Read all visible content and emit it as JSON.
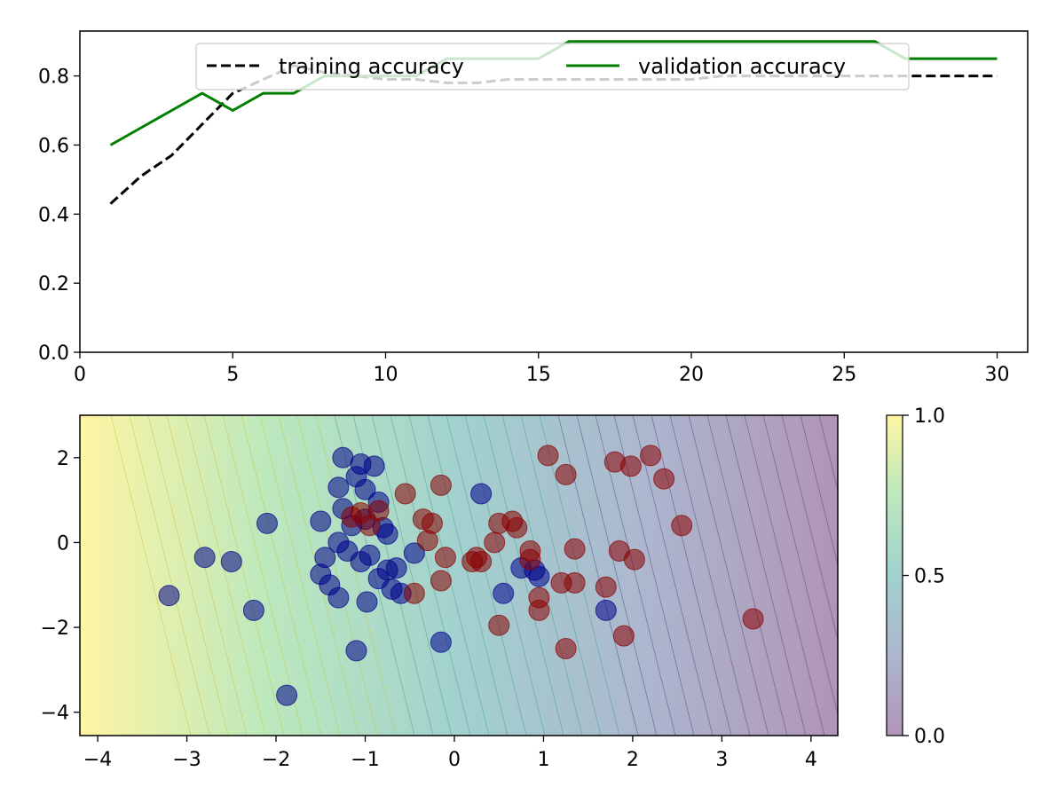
{
  "chart_data": [
    {
      "type": "line",
      "title": "",
      "xlabel": "",
      "ylabel": "",
      "xlim": [
        0,
        31
      ],
      "ylim": [
        0.0,
        0.93
      ],
      "xticks": [
        "0",
        "5",
        "10",
        "15",
        "20",
        "25",
        "30"
      ],
      "yticks": [
        "0.0",
        "0.2",
        "0.4",
        "0.6",
        "0.8"
      ],
      "legend": "upper-center",
      "grid": false,
      "x": [
        1,
        2,
        3,
        4,
        5,
        6,
        7,
        8,
        9,
        10,
        11,
        12,
        13,
        14,
        15,
        16,
        17,
        18,
        19,
        20,
        21,
        22,
        23,
        24,
        25,
        26,
        27,
        28,
        29,
        30
      ],
      "series": [
        {
          "name": "training accuracy",
          "style": "dashed",
          "color": "#000000",
          "values": [
            0.43,
            0.51,
            0.57,
            0.66,
            0.75,
            0.79,
            0.83,
            0.81,
            0.8,
            0.79,
            0.79,
            0.78,
            0.78,
            0.79,
            0.79,
            0.79,
            0.79,
            0.79,
            0.79,
            0.79,
            0.8,
            0.8,
            0.8,
            0.8,
            0.8,
            0.8,
            0.8,
            0.8,
            0.8,
            0.8
          ]
        },
        {
          "name": "validation accuracy",
          "style": "solid",
          "color": "#008000",
          "values": [
            0.6,
            0.65,
            0.7,
            0.75,
            0.7,
            0.75,
            0.75,
            0.8,
            0.8,
            0.8,
            0.8,
            0.85,
            0.85,
            0.85,
            0.85,
            0.9,
            0.9,
            0.9,
            0.9,
            0.9,
            0.9,
            0.9,
            0.9,
            0.9,
            0.9,
            0.9,
            0.85,
            0.85,
            0.85,
            0.85
          ]
        }
      ]
    },
    {
      "type": "scatter",
      "title": "",
      "xlabel": "",
      "ylabel": "",
      "xlim": [
        -4.2,
        4.3
      ],
      "ylim": [
        -4.55,
        3.0
      ],
      "xticks": [
        "−4",
        "−3",
        "−2",
        "−1",
        "0",
        "1",
        "2",
        "3",
        "4"
      ],
      "yticks": [
        "−4",
        "−2",
        "0",
        "2"
      ],
      "background": "filled contour of predicted probability (viridis colormap, alpha 0.4), decision boundary tilted",
      "colorbar": {
        "ticks": [
          "0.0",
          "0.5",
          "1.0"
        ],
        "range": [
          0.0,
          1.0
        ]
      },
      "series": [
        {
          "name": "",
          "color": "#00008b",
          "points": [
            [
              -3.2,
              -1.25
            ],
            [
              -2.8,
              -0.35
            ],
            [
              -2.5,
              -0.45
            ],
            [
              -2.25,
              -1.6
            ],
            [
              -2.1,
              0.45
            ],
            [
              -1.88,
              -3.6
            ],
            [
              -1.5,
              0.5
            ],
            [
              -1.5,
              -0.75
            ],
            [
              -1.4,
              -1.0
            ],
            [
              -1.45,
              -0.35
            ],
            [
              -1.3,
              -1.3
            ],
            [
              -1.3,
              1.3
            ],
            [
              -1.25,
              0.8
            ],
            [
              -1.25,
              2.0
            ],
            [
              -1.3,
              0.0
            ],
            [
              -1.2,
              -0.2
            ],
            [
              -1.15,
              0.4
            ],
            [
              -1.1,
              -2.55
            ],
            [
              -1.1,
              1.55
            ],
            [
              -1.05,
              1.85
            ],
            [
              -1.05,
              -0.45
            ],
            [
              -1.0,
              1.25
            ],
            [
              -1.0,
              0.55
            ],
            [
              -0.98,
              -1.4
            ],
            [
              -0.95,
              -0.3
            ],
            [
              -0.9,
              1.8
            ],
            [
              -0.85,
              -0.85
            ],
            [
              -0.85,
              0.95
            ],
            [
              -0.8,
              0.35
            ],
            [
              -0.75,
              -0.65
            ],
            [
              -0.75,
              0.2
            ],
            [
              -0.7,
              -1.1
            ],
            [
              -0.65,
              -0.6
            ],
            [
              -0.6,
              -1.2
            ],
            [
              -0.45,
              -0.25
            ],
            [
              -0.15,
              -2.35
            ],
            [
              0.3,
              1.15
            ],
            [
              0.55,
              -1.2
            ],
            [
              0.75,
              -0.6
            ],
            [
              0.9,
              -0.65
            ],
            [
              0.95,
              -0.8
            ],
            [
              1.7,
              -1.6
            ]
          ]
        },
        {
          "name": "",
          "color": "#8b0000",
          "points": [
            [
              -1.15,
              0.6
            ],
            [
              -1.05,
              0.7
            ],
            [
              -0.95,
              0.4
            ],
            [
              -0.85,
              0.75
            ],
            [
              -0.55,
              1.15
            ],
            [
              -0.45,
              -1.2
            ],
            [
              -0.35,
              0.55
            ],
            [
              -0.3,
              0.05
            ],
            [
              -0.25,
              0.45
            ],
            [
              -0.1,
              -0.35
            ],
            [
              -0.15,
              1.35
            ],
            [
              -0.15,
              -0.9
            ],
            [
              0.2,
              -0.45
            ],
            [
              0.25,
              -0.35
            ],
            [
              0.3,
              -0.45
            ],
            [
              0.45,
              0.0
            ],
            [
              0.5,
              0.45
            ],
            [
              0.5,
              -1.95
            ],
            [
              0.65,
              0.5
            ],
            [
              0.7,
              0.35
            ],
            [
              0.85,
              -0.2
            ],
            [
              0.85,
              -0.4
            ],
            [
              0.95,
              -1.3
            ],
            [
              0.95,
              -1.6
            ],
            [
              1.05,
              2.05
            ],
            [
              1.2,
              -0.95
            ],
            [
              1.25,
              1.6
            ],
            [
              1.25,
              -2.5
            ],
            [
              1.35,
              -0.95
            ],
            [
              1.35,
              -0.15
            ],
            [
              1.7,
              -1.05
            ],
            [
              1.8,
              1.9
            ],
            [
              1.85,
              -0.2
            ],
            [
              1.9,
              -2.2
            ],
            [
              1.98,
              1.8
            ],
            [
              2.02,
              -0.4
            ],
            [
              2.2,
              2.05
            ],
            [
              2.35,
              1.5
            ],
            [
              2.55,
              0.4
            ],
            [
              3.35,
              -1.8
            ]
          ]
        }
      ]
    }
  ]
}
